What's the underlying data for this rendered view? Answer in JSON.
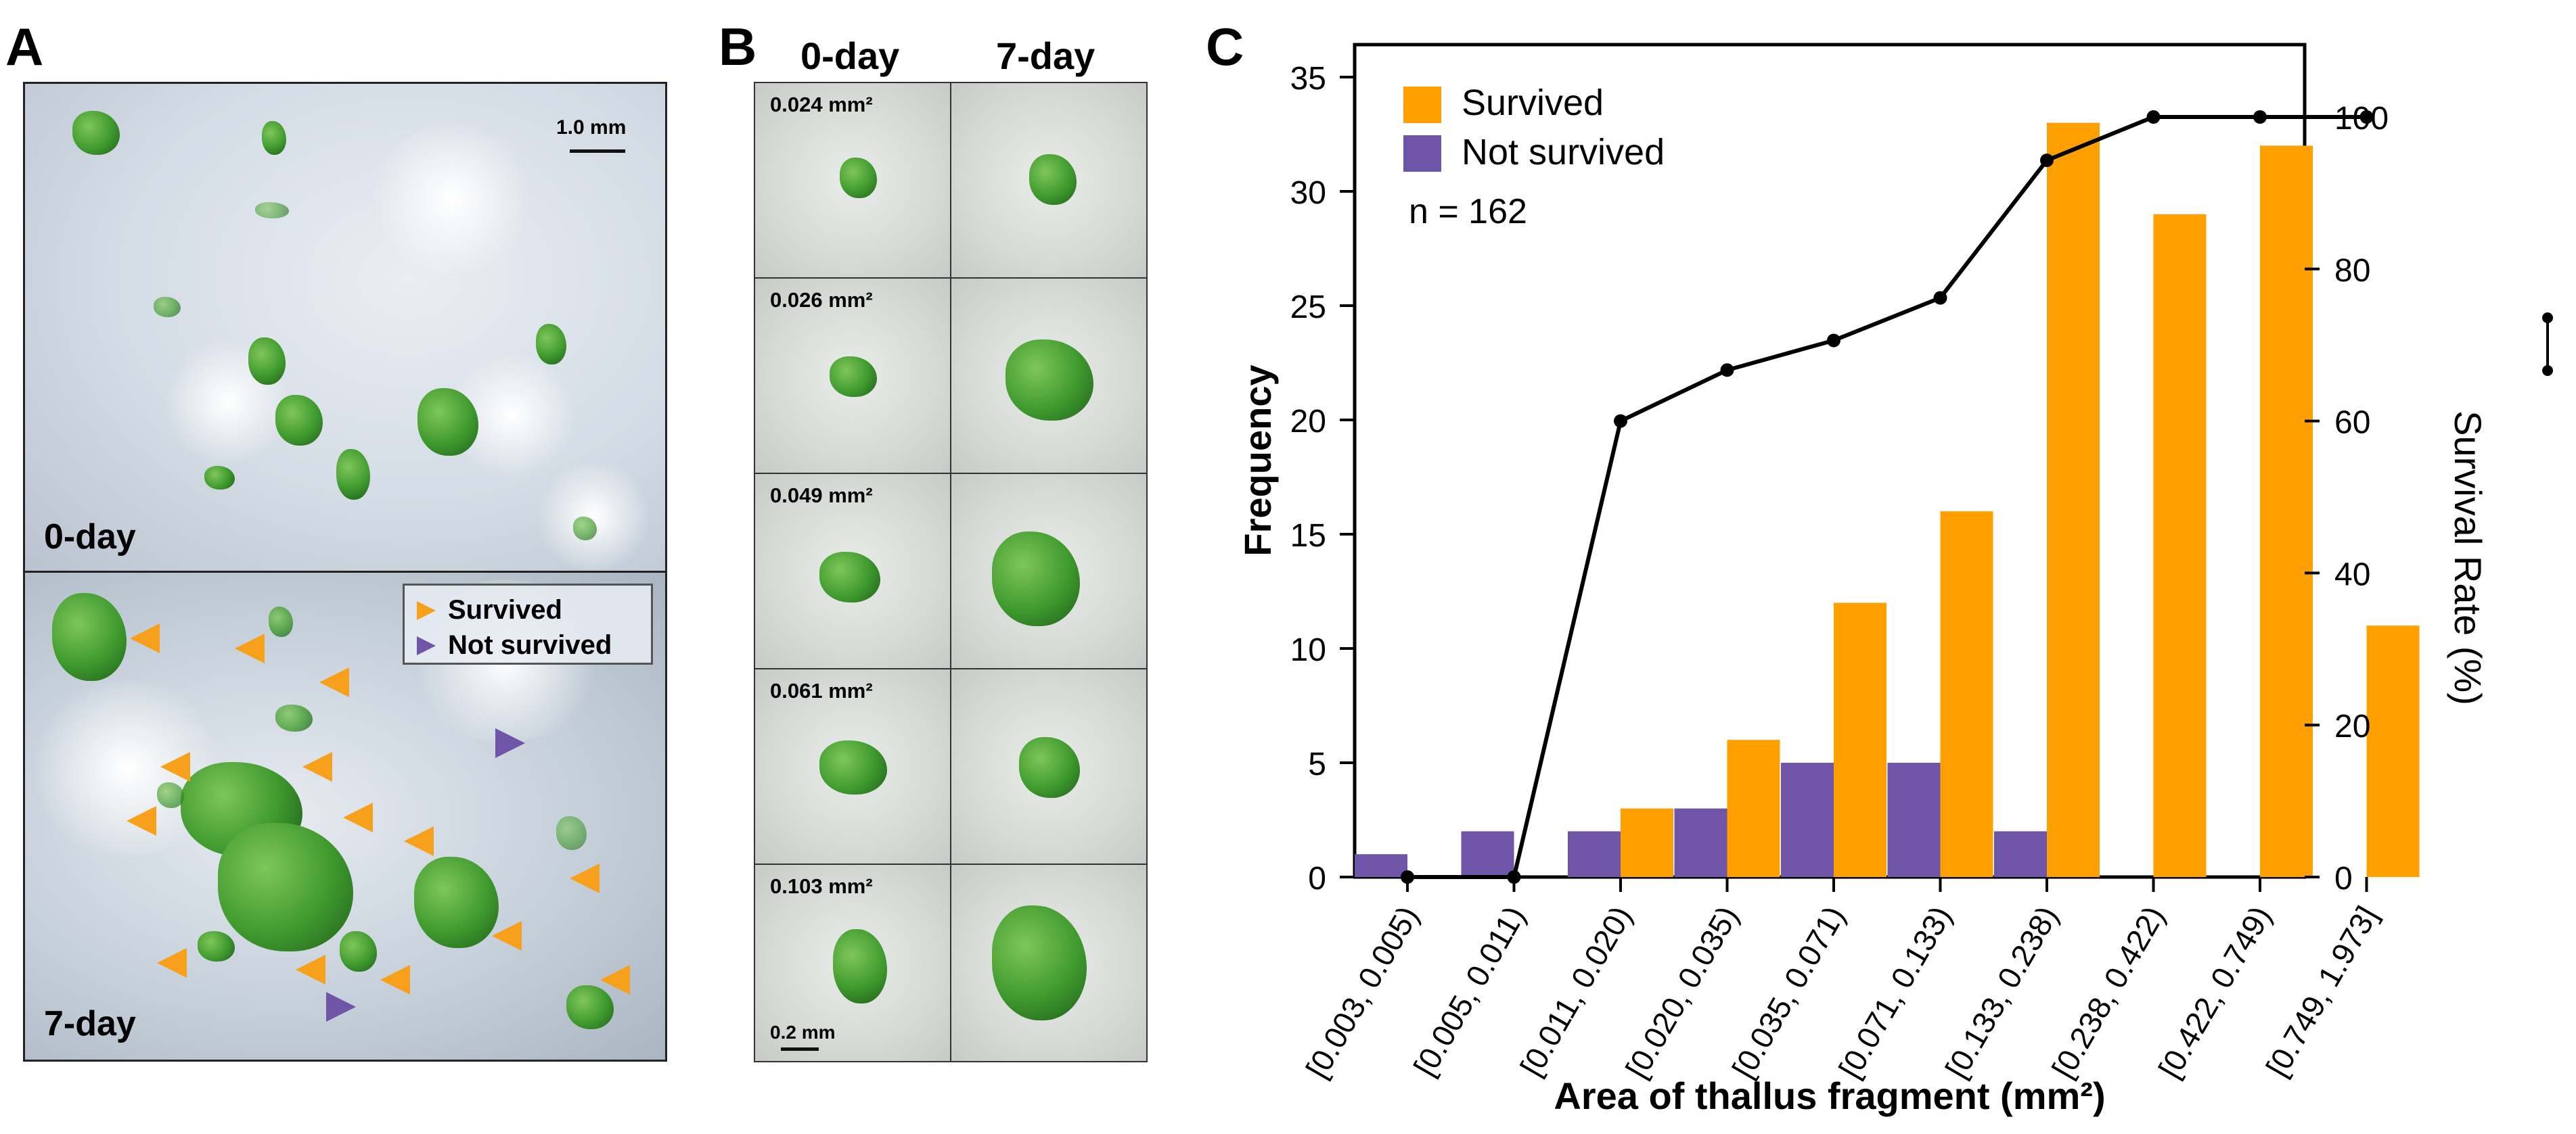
{
  "panel_a": {
    "letter": "A",
    "top_label": "0-day",
    "bottom_label": "7-day",
    "scale_text": "1.0 mm",
    "legend": {
      "survived": "Survived",
      "not_survived": "Not survived"
    },
    "colors": {
      "survived": "#F7A01C",
      "not_survived": "#6E55A7"
    }
  },
  "panel_b": {
    "letter": "B",
    "col_headers": [
      "0-day",
      "7-day"
    ],
    "rows": [
      {
        "area": "0.024 mm²"
      },
      {
        "area": "0.026 mm²"
      },
      {
        "area": "0.049 mm²"
      },
      {
        "area": "0.061 mm²"
      },
      {
        "area": "0.103 mm²"
      }
    ],
    "scale_text": "0.2 mm"
  },
  "panel_c": {
    "letter": "C"
  },
  "chart_data": {
    "type": "bar",
    "categories": [
      "[0.003, 0.005)",
      "[0.005, 0.011)",
      "[0.011, 0.020)",
      "[0.020, 0.035)",
      "[0.035, 0.071)",
      "[0.071, 0.133)",
      "[0.133, 0.238)",
      "[0.238, 0.422)",
      "[0.422, 0.749)",
      "[0.749, 1.973]"
    ],
    "series": [
      {
        "name": "Not survived",
        "color": "#6E55A7",
        "values": [
          1,
          2,
          2,
          3,
          5,
          5,
          2,
          0,
          0,
          0
        ]
      },
      {
        "name": "Survived",
        "color": "#FF9F00",
        "values": [
          0,
          0,
          3,
          6,
          12,
          16,
          33,
          29,
          32,
          11
        ]
      }
    ],
    "line": {
      "name": "Survival Rate (%)",
      "values": [
        0,
        0,
        60,
        66.7,
        70.6,
        76.2,
        94.3,
        100,
        100,
        100
      ]
    },
    "xlabel": "Area of thallus fragment (mm²)",
    "ylabel": "Frequency",
    "y2label": "Survival Rate (%)",
    "ylim": [
      0,
      35
    ],
    "y2lim": [
      0,
      105
    ],
    "yticks": [
      "0",
      "5",
      "10",
      "15",
      "20",
      "25",
      "30",
      "35"
    ],
    "y2ticks": [
      "0",
      "20",
      "40",
      "60",
      "80",
      "100"
    ],
    "legend_labels": [
      "Survived",
      "Not survived"
    ],
    "annotation": "n = 162"
  }
}
